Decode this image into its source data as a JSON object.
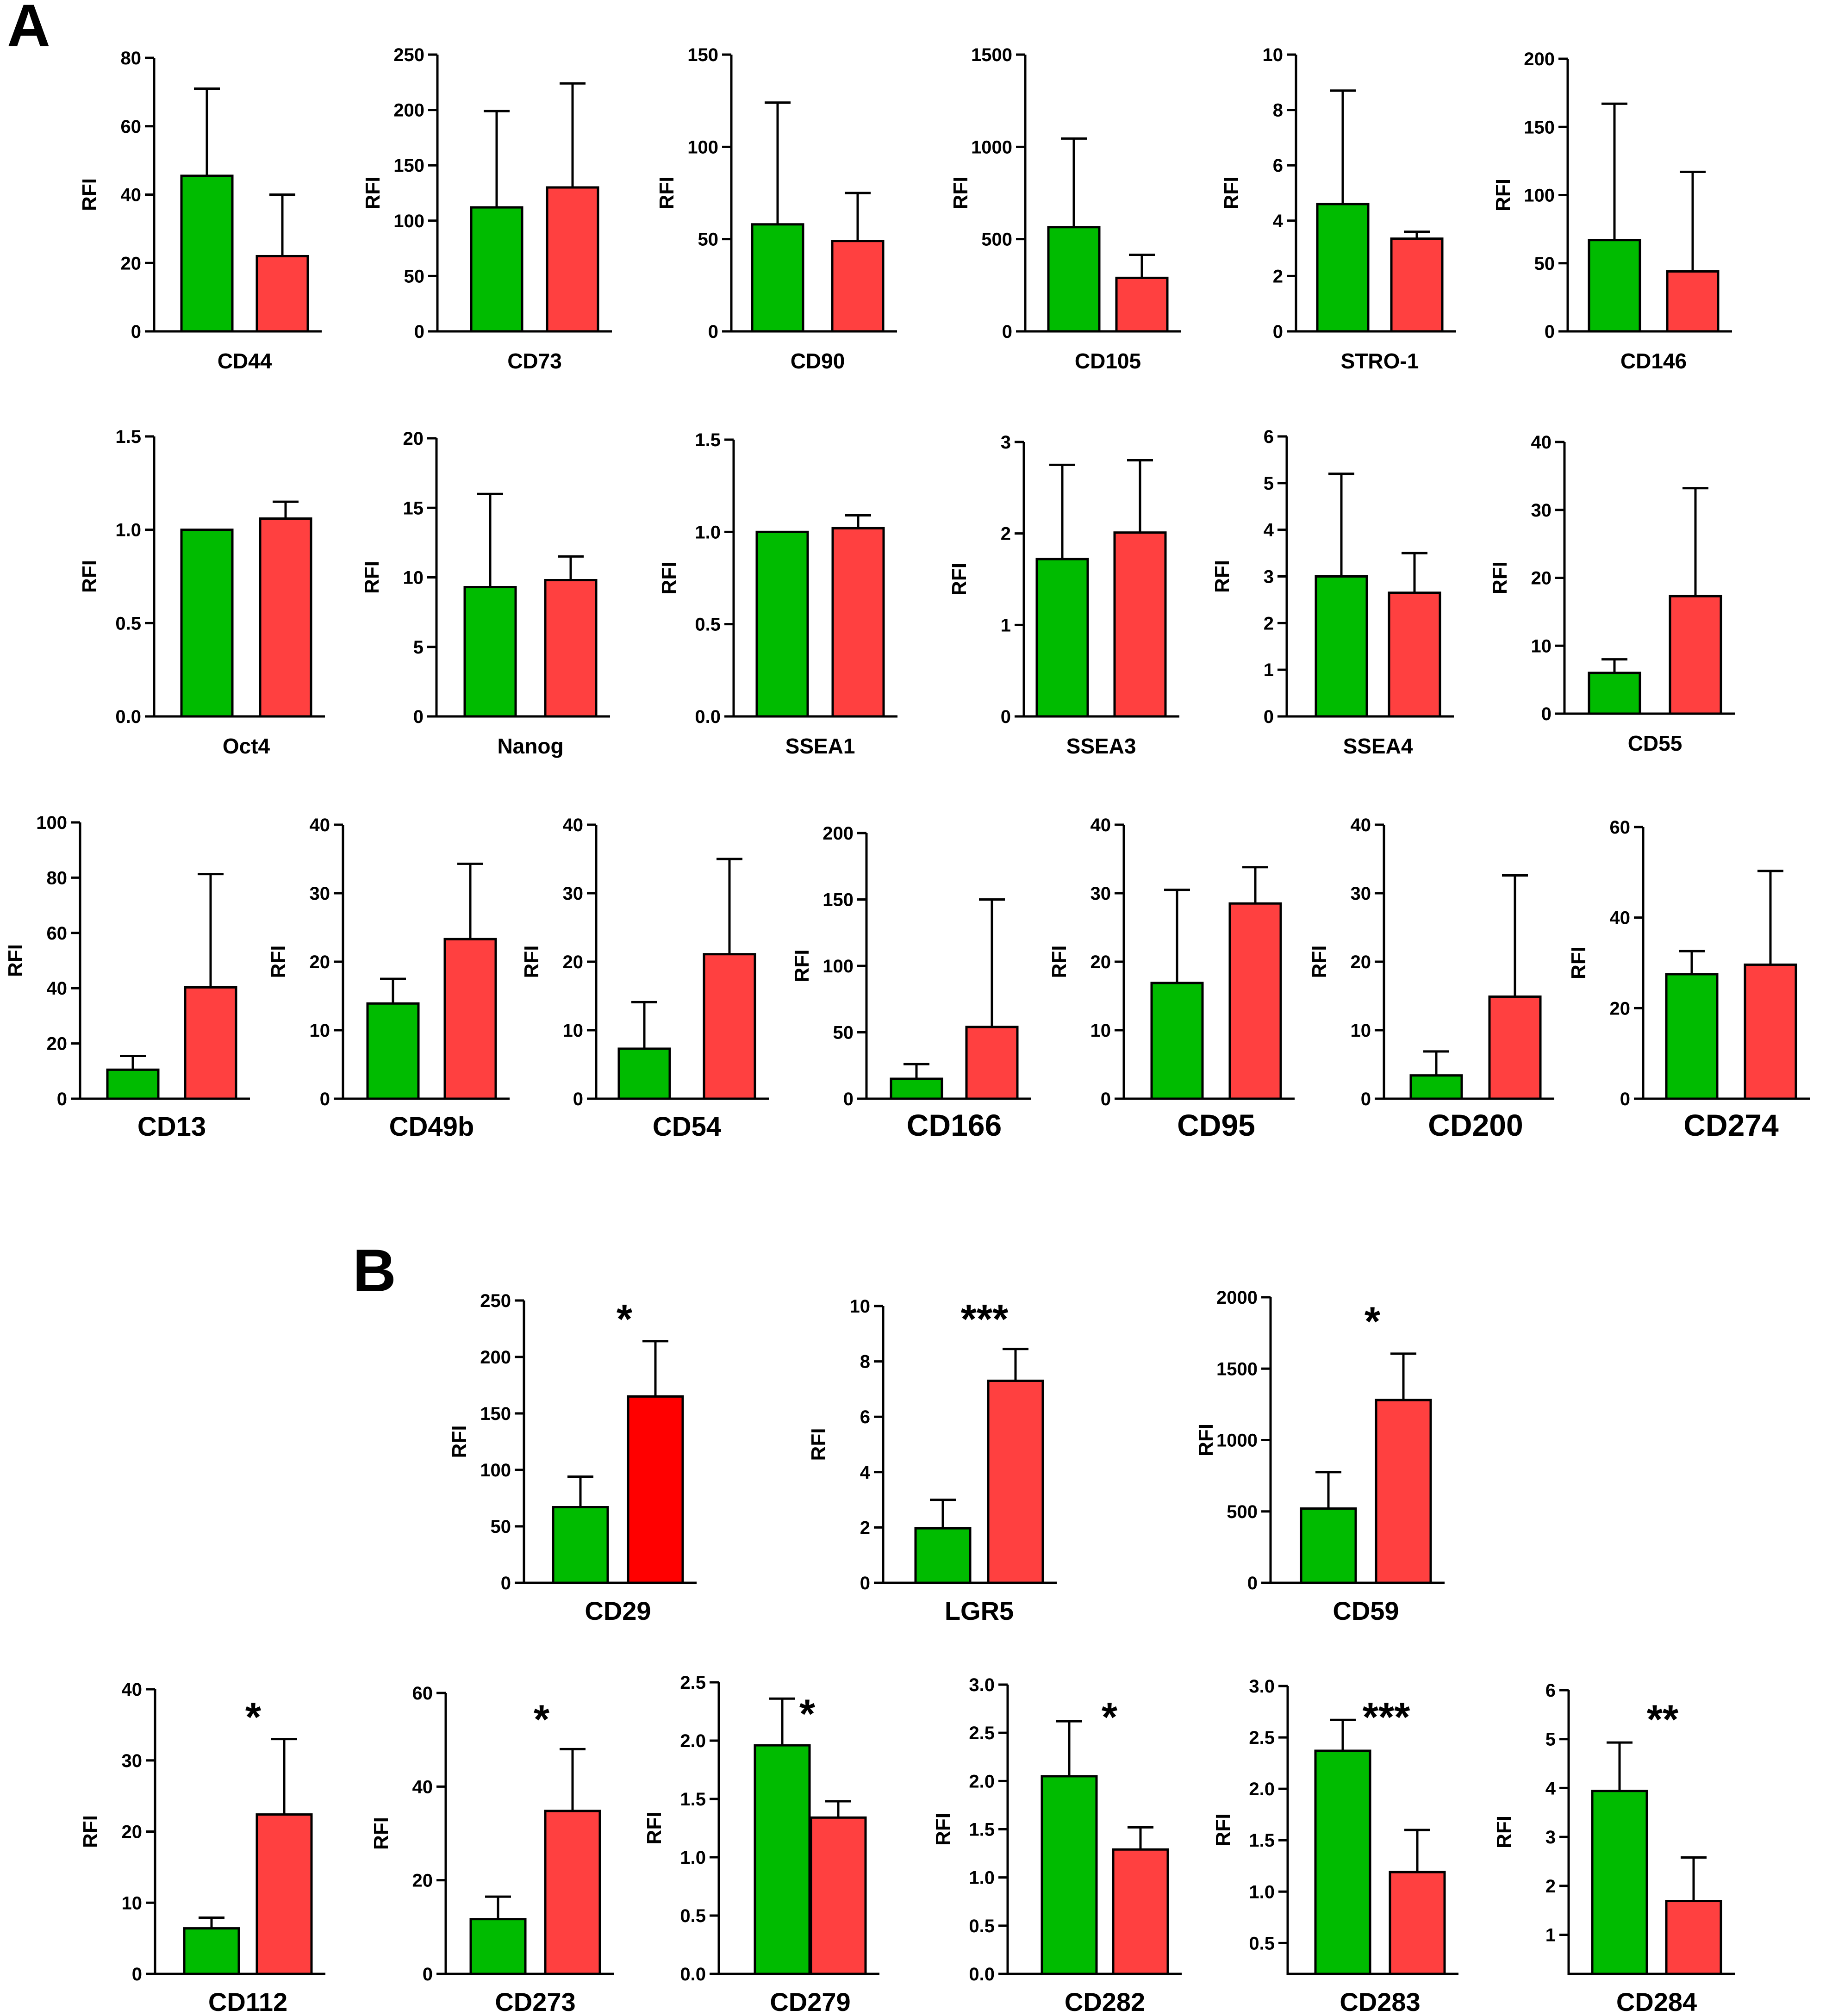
{
  "panels": [
    {
      "label": "A"
    },
    {
      "label": "B"
    }
  ],
  "colors": {
    "group1": "#00bb00",
    "group2": "#ff4040",
    "group2_strong": "#ff0000",
    "axis": "#000000"
  },
  "chart_data": [
    {
      "type": "bar",
      "panel": "A",
      "title": "CD44",
      "ylabel": "RFI",
      "ylim": [
        0,
        80
      ],
      "yticks": [
        "0",
        "20",
        "40",
        "60",
        "80"
      ],
      "values": [
        45.5,
        22
      ],
      "errors": [
        71,
        40
      ],
      "colors": [
        "group1",
        "group2"
      ]
    },
    {
      "type": "bar",
      "panel": "A",
      "title": "CD73",
      "ylabel": "RFI",
      "ylim": [
        0,
        250
      ],
      "yticks": [
        "0",
        "50",
        "100",
        "150",
        "200",
        "250"
      ],
      "values": [
        112,
        130
      ],
      "errors": [
        199,
        224
      ],
      "colors": [
        "group1",
        "group2"
      ]
    },
    {
      "type": "bar",
      "panel": "A",
      "title": "CD90",
      "ylabel": "RFI",
      "ylim": [
        0,
        150
      ],
      "yticks": [
        "0",
        "50",
        "100",
        "150"
      ],
      "values": [
        58,
        49
      ],
      "errors": [
        124,
        75
      ],
      "colors": [
        "group1",
        "group2"
      ]
    },
    {
      "type": "bar",
      "panel": "A",
      "title": "CD105",
      "ylabel": "RFI",
      "ylim": [
        0,
        1500
      ],
      "yticks": [
        "0",
        "500",
        "1000",
        "1500"
      ],
      "values": [
        565,
        290
      ],
      "errors": [
        1045,
        415
      ],
      "colors": [
        "group1",
        "group2"
      ]
    },
    {
      "type": "bar",
      "panel": "A",
      "title": "STRO-1",
      "ylabel": "RFI",
      "ylim": [
        0,
        10
      ],
      "yticks": [
        "0",
        "2",
        "4",
        "6",
        "8",
        "10"
      ],
      "values": [
        4.6,
        3.35
      ],
      "errors": [
        8.7,
        3.6
      ],
      "colors": [
        "group1",
        "group2"
      ]
    },
    {
      "type": "bar",
      "panel": "A",
      "title": "CD146",
      "ylabel": "RFI",
      "ylim": [
        0,
        200
      ],
      "yticks": [
        "0",
        "50",
        "100",
        "150",
        "200"
      ],
      "values": [
        67,
        44
      ],
      "errors": [
        167,
        117
      ],
      "colors": [
        "group1",
        "group2"
      ]
    },
    {
      "type": "bar",
      "panel": "A",
      "title": "Oct4",
      "ylabel": "RFI",
      "ylim": [
        0,
        1.5
      ],
      "yticks": [
        "0.0",
        "0.5",
        "1.0",
        "1.5"
      ],
      "values": [
        1.0,
        1.06
      ],
      "errors": [
        1.0,
        1.15
      ],
      "colors": [
        "group1",
        "group2"
      ]
    },
    {
      "type": "bar",
      "panel": "A",
      "title": "Nanog",
      "ylabel": "RFI",
      "ylim": [
        0,
        20
      ],
      "yticks": [
        "0",
        "5",
        "10",
        "15",
        "20"
      ],
      "values": [
        9.3,
        9.8
      ],
      "errors": [
        16,
        11.5
      ],
      "colors": [
        "group1",
        "group2"
      ]
    },
    {
      "type": "bar",
      "panel": "A",
      "title": "SSEA1",
      "ylabel": "RFI",
      "ylim": [
        0,
        1.5
      ],
      "yticks": [
        "0.0",
        "0.5",
        "1.0",
        "1.5"
      ],
      "values": [
        1.0,
        1.02
      ],
      "errors": [
        1.0,
        1.09
      ],
      "colors": [
        "group1",
        "group2"
      ]
    },
    {
      "type": "bar",
      "panel": "A",
      "title": "SSEA3",
      "ylabel": "RFI",
      "ylim": [
        0,
        3
      ],
      "yticks": [
        "0",
        "1",
        "2",
        "3"
      ],
      "values": [
        1.72,
        2.01
      ],
      "errors": [
        2.75,
        2.8
      ],
      "colors": [
        "group1",
        "group2"
      ]
    },
    {
      "type": "bar",
      "panel": "A",
      "title": "SSEA4",
      "ylabel": "RFI",
      "ylim": [
        0,
        6
      ],
      "yticks": [
        "0",
        "1",
        "2",
        "3",
        "4",
        "5",
        "6"
      ],
      "values": [
        3.0,
        2.65
      ],
      "errors": [
        5.2,
        3.5
      ],
      "colors": [
        "group1",
        "group2"
      ]
    },
    {
      "type": "bar",
      "panel": "A",
      "title": "CD55",
      "ylabel": "RFI",
      "ylim": [
        0,
        40
      ],
      "yticks": [
        "0",
        "10",
        "20",
        "30",
        "40"
      ],
      "values": [
        6,
        17.3
      ],
      "errors": [
        8,
        33.2
      ],
      "colors": [
        "group1",
        "group2"
      ]
    },
    {
      "type": "bar",
      "panel": "A",
      "title": "CD13",
      "ylabel": "RFI",
      "ylim": [
        0,
        100
      ],
      "yticks": [
        "0",
        "20",
        "40",
        "60",
        "80",
        "100"
      ],
      "values": [
        10.5,
        40.3
      ],
      "errors": [
        15.5,
        81.3
      ],
      "colors": [
        "group1",
        "group2"
      ]
    },
    {
      "type": "bar",
      "panel": "A",
      "title": "CD49b",
      "ylabel": "RFI",
      "ylim": [
        0,
        40
      ],
      "yticks": [
        "0",
        "10",
        "20",
        "30",
        "40"
      ],
      "values": [
        13.9,
        23.3
      ],
      "errors": [
        17.5,
        34.3
      ],
      "colors": [
        "group1",
        "group2"
      ]
    },
    {
      "type": "bar",
      "panel": "A",
      "title": "CD54",
      "ylabel": "RFI",
      "ylim": [
        0,
        40
      ],
      "yticks": [
        "0",
        "10",
        "20",
        "30",
        "40"
      ],
      "values": [
        7.3,
        21.1
      ],
      "errors": [
        14.1,
        35
      ],
      "colors": [
        "group1",
        "group2"
      ]
    },
    {
      "type": "bar",
      "panel": "A",
      "title": "CD166",
      "ylabel": "RFI",
      "ylim": [
        0,
        200
      ],
      "yticks": [
        "0",
        "50",
        "100",
        "150",
        "200"
      ],
      "values": [
        15,
        54
      ],
      "errors": [
        26,
        150
      ],
      "colors": [
        "group1",
        "group2"
      ]
    },
    {
      "type": "bar",
      "panel": "A",
      "title": "CD95",
      "ylabel": "RFI",
      "ylim": [
        0,
        40
      ],
      "yticks": [
        "0",
        "10",
        "20",
        "30",
        "40"
      ],
      "values": [
        16.9,
        28.5
      ],
      "errors": [
        30.5,
        33.8
      ],
      "colors": [
        "group1",
        "group2"
      ]
    },
    {
      "type": "bar",
      "panel": "A",
      "title": "CD200",
      "ylabel": "RFI",
      "ylim": [
        0,
        40
      ],
      "yticks": [
        "0",
        "10",
        "20",
        "30",
        "40"
      ],
      "values": [
        3.4,
        14.9
      ],
      "errors": [
        6.9,
        32.6
      ],
      "colors": [
        "group1",
        "group2"
      ]
    },
    {
      "type": "bar",
      "panel": "A",
      "title": "CD274",
      "ylabel": "RFI",
      "ylim": [
        0,
        60
      ],
      "yticks": [
        "0",
        "20",
        "40",
        "60"
      ],
      "values": [
        27.5,
        29.6
      ],
      "errors": [
        32.6,
        50.3
      ],
      "colors": [
        "group1",
        "group2"
      ]
    },
    {
      "type": "bar",
      "panel": "B",
      "title": "CD29",
      "ylabel": "RFI",
      "ylim": [
        0,
        250
      ],
      "yticks": [
        "0",
        "50",
        "100",
        "150",
        "200",
        "250"
      ],
      "values": [
        67,
        165
      ],
      "errors": [
        94,
        214
      ],
      "colors": [
        "group1",
        "group2_strong"
      ],
      "significance": "*"
    },
    {
      "type": "bar",
      "panel": "B",
      "title": "LGR5",
      "ylabel": "RFI",
      "ylim": [
        0,
        10
      ],
      "yticks": [
        "0",
        "2",
        "4",
        "6",
        "8",
        "10"
      ],
      "values": [
        1.97,
        7.3
      ],
      "errors": [
        3.0,
        8.45
      ],
      "colors": [
        "group1",
        "group2"
      ],
      "significance": "***"
    },
    {
      "type": "bar",
      "panel": "B",
      "title": "CD59",
      "ylabel": "RFI",
      "ylim": [
        0,
        2000
      ],
      "yticks": [
        "0",
        "500",
        "1000",
        "1500",
        "2000"
      ],
      "values": [
        520,
        1280
      ],
      "errors": [
        775,
        1605
      ],
      "colors": [
        "group1",
        "group2"
      ],
      "significance": "*"
    },
    {
      "type": "bar",
      "panel": "B",
      "title": "CD112",
      "ylabel": "RFI",
      "ylim": [
        0,
        40
      ],
      "yticks": [
        "0",
        "10",
        "20",
        "30",
        "40"
      ],
      "values": [
        6.4,
        22.4
      ],
      "errors": [
        7.9,
        33
      ],
      "colors": [
        "group1",
        "group2"
      ],
      "significance": "*"
    },
    {
      "type": "bar",
      "panel": "B",
      "title": "CD273",
      "ylabel": "RFI",
      "ylim": [
        0,
        60
      ],
      "yticks": [
        "0",
        "20",
        "40",
        "60"
      ],
      "values": [
        11.7,
        34.8
      ],
      "errors": [
        16.5,
        48
      ],
      "colors": [
        "group1",
        "group2"
      ],
      "significance": "*"
    },
    {
      "type": "bar",
      "panel": "B",
      "title": "CD279",
      "ylabel": "RFI",
      "ylim": [
        0,
        2.5
      ],
      "yticks": [
        "0.0",
        "0.5",
        "1.0",
        "1.5",
        "2.0",
        "2.5"
      ],
      "values": [
        1.96,
        1.34
      ],
      "errors": [
        2.36,
        1.48
      ],
      "colors": [
        "group1",
        "group2"
      ],
      "significance": "*"
    },
    {
      "type": "bar",
      "panel": "B",
      "title": "CD282",
      "ylabel": "RFI",
      "ylim": [
        0,
        3
      ],
      "yticks": [
        "0.0",
        "0.5",
        "1.0",
        "1.5",
        "2.0",
        "2.5",
        "3.0"
      ],
      "values": [
        2.05,
        1.29
      ],
      "errors": [
        2.62,
        1.52
      ],
      "colors": [
        "group1",
        "group2"
      ],
      "significance": "*"
    },
    {
      "type": "bar",
      "panel": "B",
      "title": "CD283",
      "ylabel": "RFI",
      "ylim": [
        0.2,
        3
      ],
      "yticks": [
        "0.5",
        "1.0",
        "1.5",
        "2.0",
        "2.5",
        "3.0"
      ],
      "values": [
        2.37,
        1.19
      ],
      "errors": [
        2.67,
        1.6
      ],
      "colors": [
        "group1",
        "group2"
      ],
      "significance": "***"
    },
    {
      "type": "bar",
      "panel": "B",
      "title": "CD284",
      "ylabel": "RFI",
      "ylim": [
        0.2,
        6
      ],
      "yticks": [
        "1",
        "2",
        "3",
        "4",
        "5",
        "6"
      ],
      "values": [
        3.94,
        1.69
      ],
      "errors": [
        4.93,
        2.58
      ],
      "colors": [
        "group1",
        "group2"
      ],
      "significance": "**"
    }
  ]
}
